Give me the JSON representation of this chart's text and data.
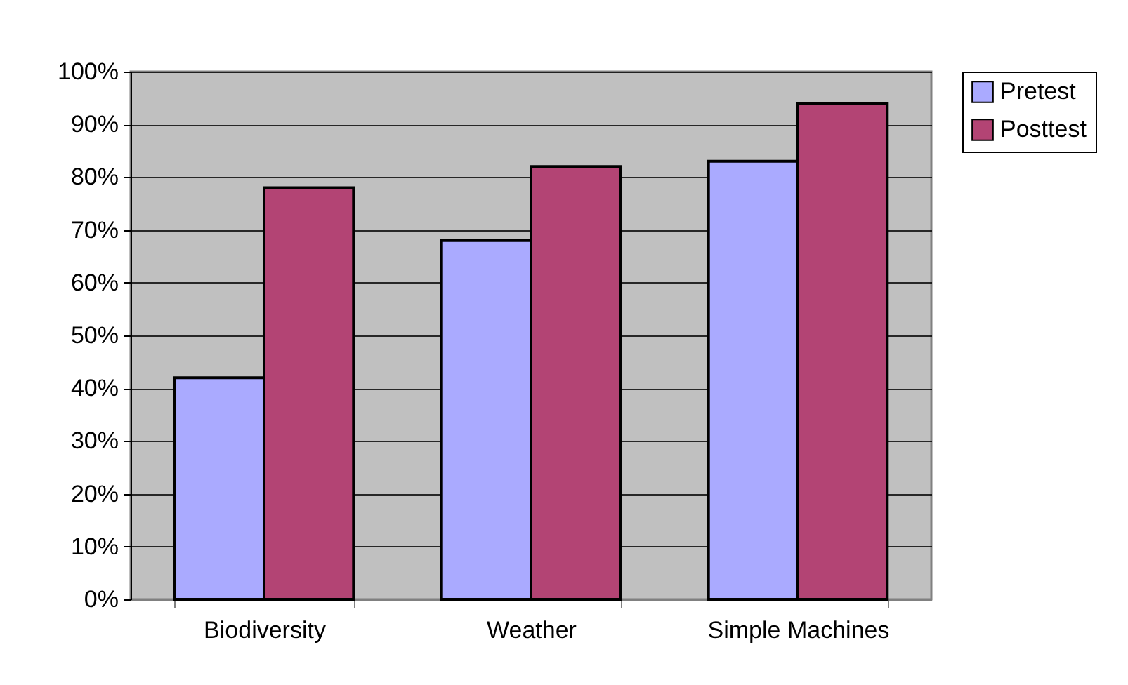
{
  "chart_data": {
    "type": "bar",
    "categories": [
      "Biodiversity",
      "Weather",
      "Simple Machines"
    ],
    "series": [
      {
        "name": "Pretest",
        "color": "#aaaaff",
        "values": [
          42,
          68,
          83
        ]
      },
      {
        "name": "Posttest",
        "color": "#b34474",
        "values": [
          78,
          82,
          94
        ]
      }
    ],
    "ylim": [
      0,
      100
    ],
    "yticks": [
      {
        "value": 0,
        "label": "0%"
      },
      {
        "value": 10,
        "label": "10%"
      },
      {
        "value": 20,
        "label": "20%"
      },
      {
        "value": 30,
        "label": "30%"
      },
      {
        "value": 40,
        "label": "40%"
      },
      {
        "value": 50,
        "label": "50%"
      },
      {
        "value": 60,
        "label": "60%"
      },
      {
        "value": 70,
        "label": "70%"
      },
      {
        "value": 80,
        "label": "80%"
      },
      {
        "value": 90,
        "label": "90%"
      },
      {
        "value": 100,
        "label": "100%"
      }
    ],
    "grid": "y",
    "legend": "right"
  }
}
